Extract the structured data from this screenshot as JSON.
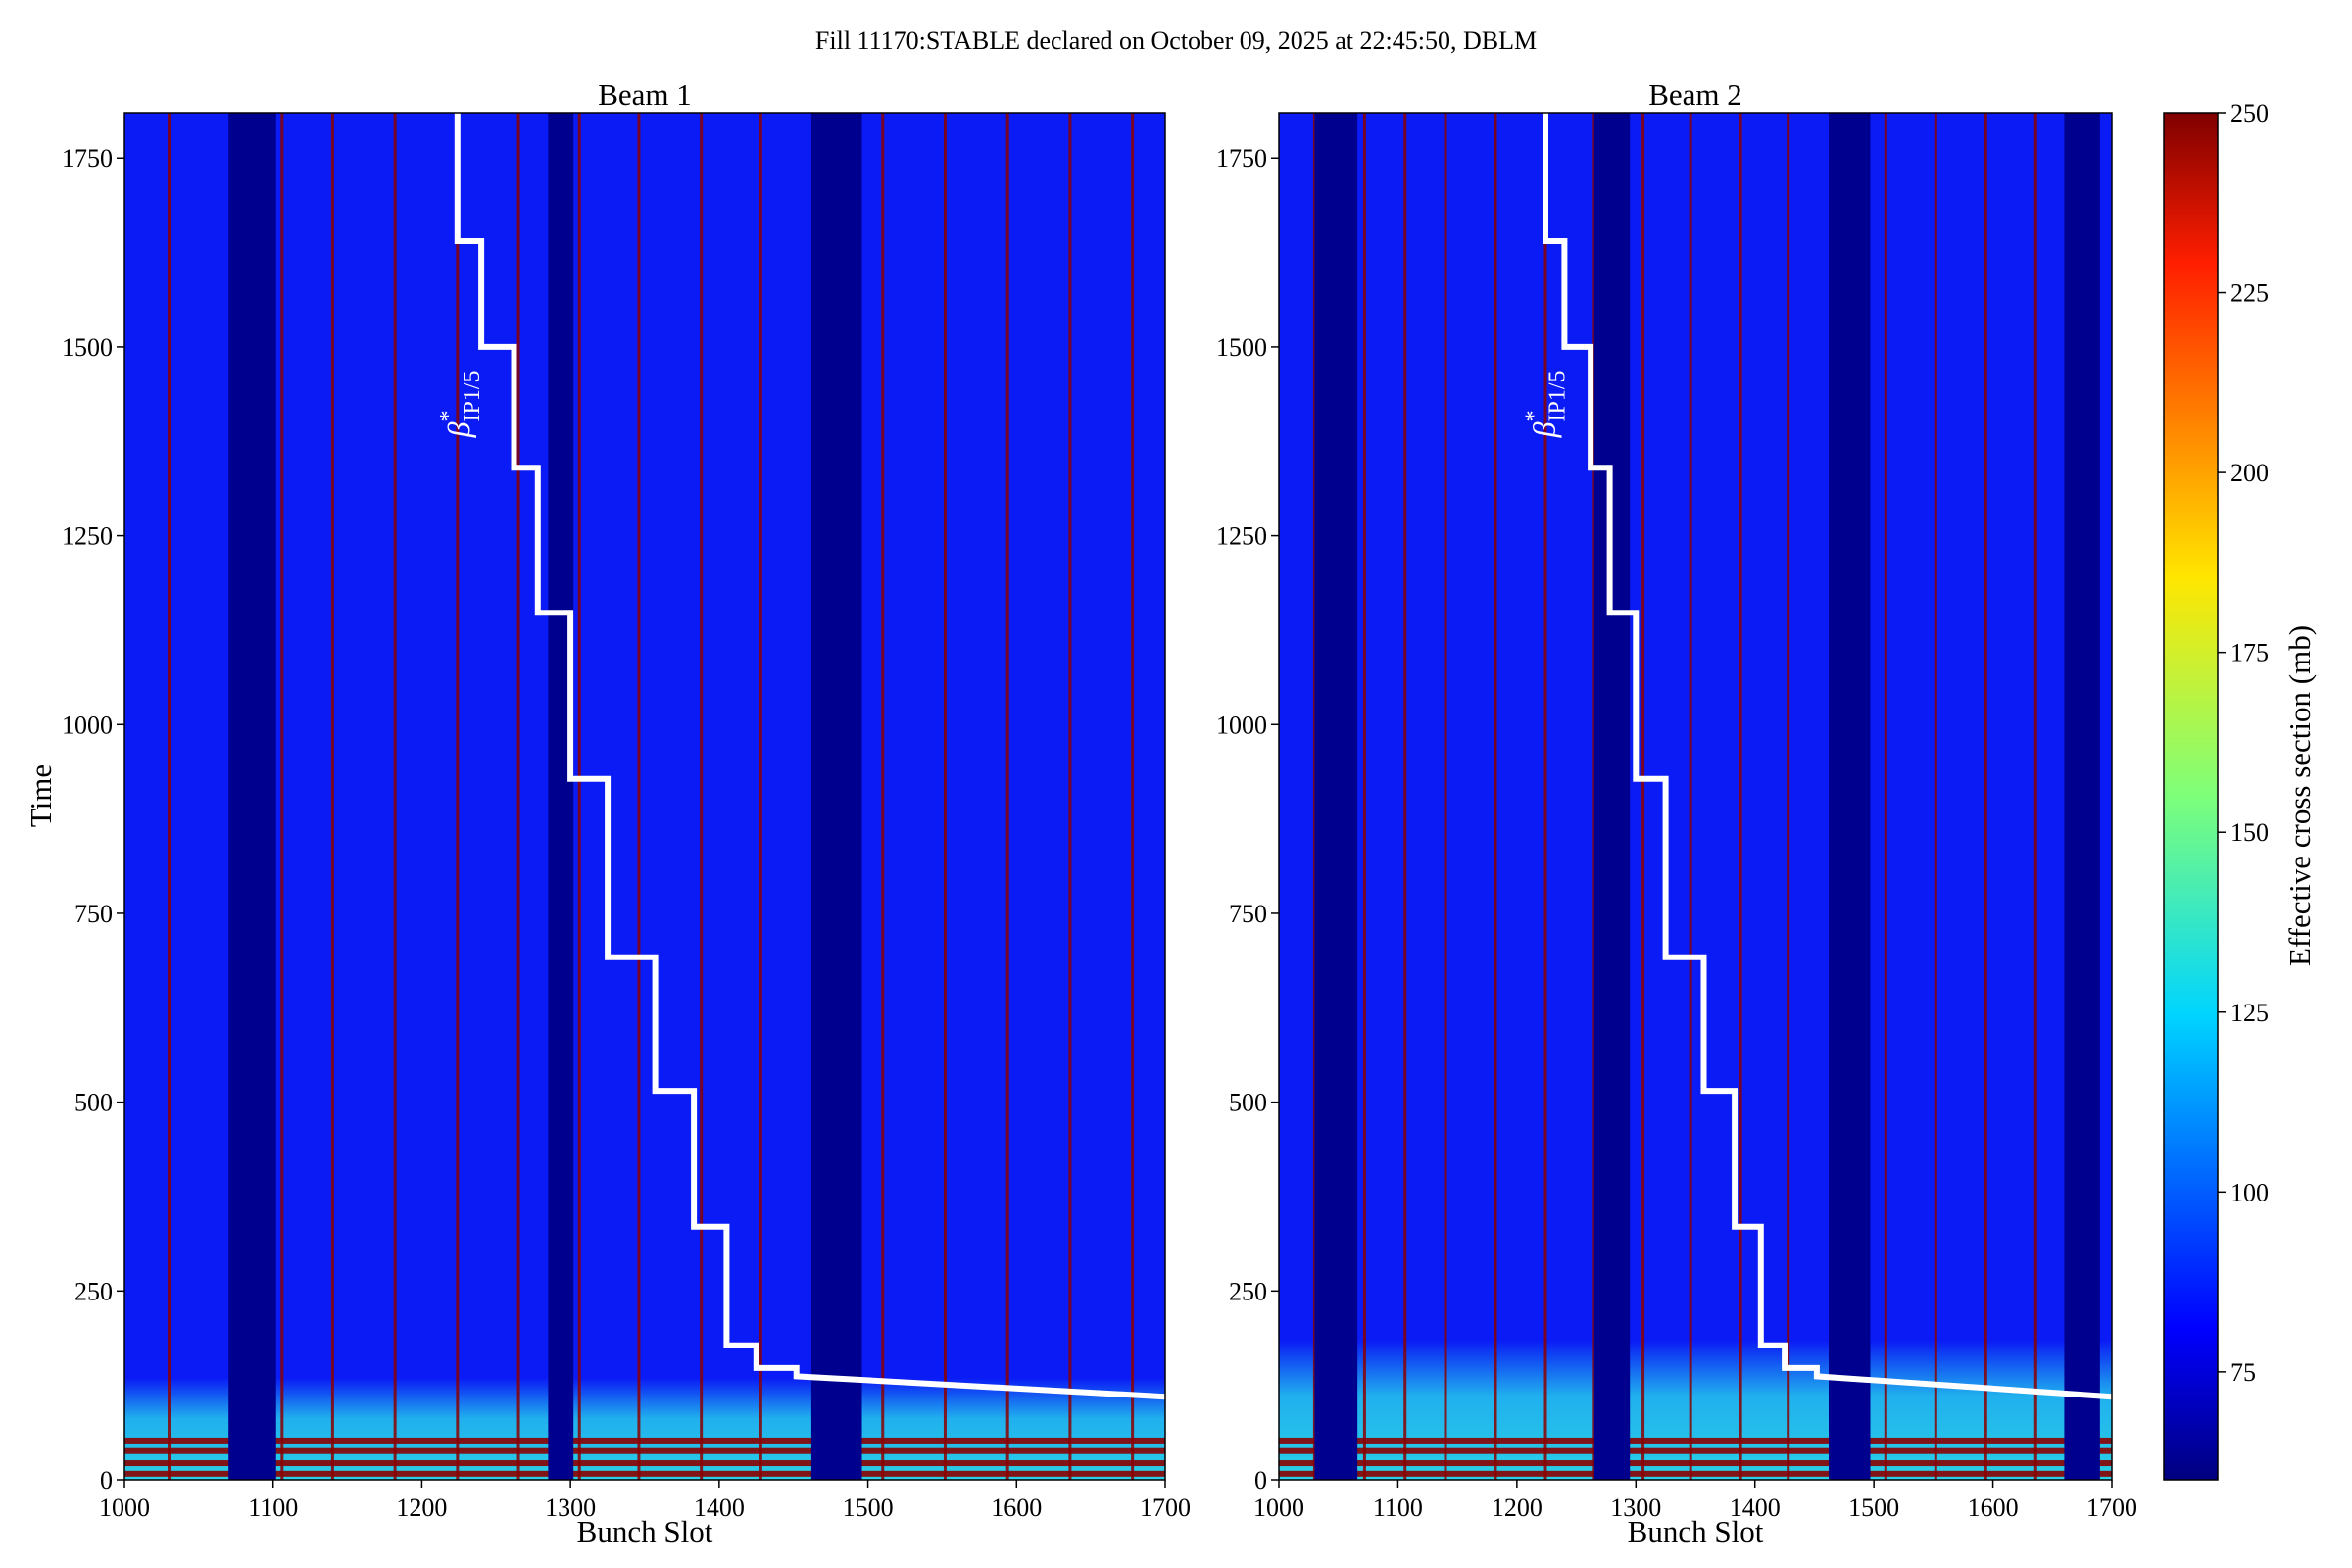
{
  "figure": {
    "suptitle": "Fill 11170:STABLE declared on October 09, 2025 at 22:45:50, DBLM"
  },
  "chart_data": [
    {
      "type": "heatmap",
      "title": "Beam 1",
      "xlabel": "Bunch Slot",
      "ylabel": "Time",
      "xlim": [
        1000,
        1700
      ],
      "ylim": [
        0,
        1810
      ],
      "xticks": [
        1000,
        1100,
        1200,
        1300,
        1400,
        1500,
        1600,
        1700
      ],
      "yticks": [
        0,
        250,
        500,
        750,
        1000,
        1250,
        1500,
        1750
      ],
      "train_gaps": [
        [
          1070,
          1102
        ],
        [
          1285,
          1302
        ],
        [
          1462,
          1496
        ]
      ],
      "edge_lines": [
        1030,
        1072,
        1106,
        1140,
        1182,
        1224,
        1265,
        1306,
        1346,
        1388,
        1428,
        1470,
        1510,
        1552,
        1594,
        1636,
        1678
      ],
      "low_band_top": 135,
      "red_line_times": [
        8,
        22,
        38,
        52
      ],
      "step_annotation": "β*IP1/5",
      "step_curve": [
        [
          1224,
          1810
        ],
        [
          1224,
          1640
        ],
        [
          1240,
          1640
        ],
        [
          1240,
          1500
        ],
        [
          1262,
          1500
        ],
        [
          1262,
          1340
        ],
        [
          1278,
          1340
        ],
        [
          1278,
          1148
        ],
        [
          1300,
          1148
        ],
        [
          1300,
          928
        ],
        [
          1325,
          928
        ],
        [
          1325,
          692
        ],
        [
          1357,
          692
        ],
        [
          1357,
          515
        ],
        [
          1383,
          515
        ],
        [
          1383,
          335
        ],
        [
          1405,
          335
        ],
        [
          1405,
          178
        ],
        [
          1425,
          178
        ],
        [
          1425,
          148
        ],
        [
          1452,
          148
        ],
        [
          1452,
          137
        ],
        [
          1700,
          110
        ]
      ]
    },
    {
      "type": "heatmap",
      "title": "Beam 2",
      "xlabel": "Bunch Slot",
      "ylabel": "",
      "xlim": [
        1000,
        1700
      ],
      "ylim": [
        0,
        1810
      ],
      "xticks": [
        1000,
        1100,
        1200,
        1300,
        1400,
        1500,
        1600,
        1700
      ],
      "yticks": [
        0,
        250,
        500,
        750,
        1000,
        1250,
        1500,
        1750
      ],
      "train_gaps": [
        [
          1030,
          1066
        ],
        [
          1265,
          1295
        ],
        [
          1462,
          1497
        ],
        [
          1660,
          1690
        ]
      ],
      "edge_lines": [
        1030,
        1072,
        1106,
        1140,
        1182,
        1224,
        1265,
        1306,
        1346,
        1388,
        1428,
        1470,
        1510,
        1552,
        1594,
        1636,
        1678
      ],
      "low_band_top": 185,
      "red_line_times": [
        8,
        22,
        38,
        52
      ],
      "step_annotation": "β*IP1/5",
      "step_curve": [
        [
          1224,
          1810
        ],
        [
          1224,
          1640
        ],
        [
          1240,
          1640
        ],
        [
          1240,
          1500
        ],
        [
          1262,
          1500
        ],
        [
          1262,
          1340
        ],
        [
          1278,
          1340
        ],
        [
          1278,
          1148
        ],
        [
          1300,
          1148
        ],
        [
          1300,
          928
        ],
        [
          1325,
          928
        ],
        [
          1325,
          692
        ],
        [
          1357,
          692
        ],
        [
          1357,
          515
        ],
        [
          1383,
          515
        ],
        [
          1383,
          335
        ],
        [
          1405,
          335
        ],
        [
          1405,
          178
        ],
        [
          1425,
          178
        ],
        [
          1425,
          148
        ],
        [
          1452,
          148
        ],
        [
          1452,
          137
        ],
        [
          1700,
          110
        ]
      ]
    }
  ],
  "colorbar": {
    "label": "Effective cross section (mb)",
    "range": [
      60,
      250
    ],
    "ticks": [
      75,
      100,
      125,
      150,
      175,
      200,
      225,
      250
    ],
    "colormap": "jet"
  },
  "colors": {
    "dark_blue": "#00008f",
    "main_blue": "#0a1bf5",
    "cyan": "#33d6e6",
    "red_line": "#8b0000",
    "step_line": "#ffffff"
  }
}
